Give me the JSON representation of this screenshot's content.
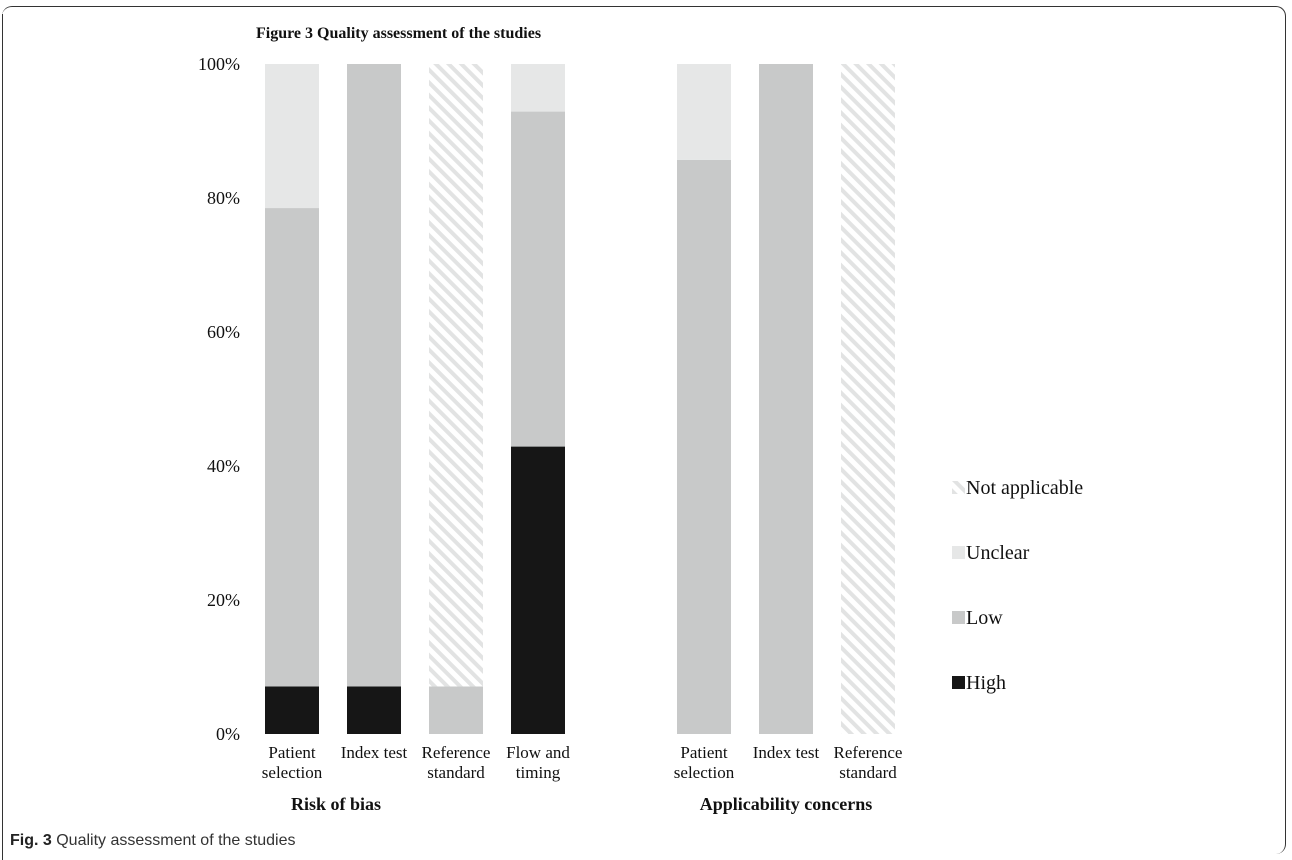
{
  "caption": {
    "label": "Fig. 3",
    "text": "Quality assessment of the studies"
  },
  "colors": {
    "High": "#161616",
    "Low": "#c8c9c9",
    "Unclear": "#e6e7e7",
    "Not applicable": "hatch"
  },
  "chart_data": {
    "type": "bar",
    "stacked": true,
    "title": "Figure 3 Quality assessment of the studies",
    "ylim": [
      0,
      100
    ],
    "yticks": [
      "0%",
      "20%",
      "40%",
      "60%",
      "80%",
      "100%"
    ],
    "grid": false,
    "legend_position": "right",
    "legend": [
      "Not applicable",
      "Unclear",
      "Low",
      "High"
    ],
    "groups": [
      {
        "name": "Risk of bias",
        "categories": [
          [
            "Patient",
            "selection"
          ],
          [
            "Index test"
          ],
          [
            "Reference",
            "standard"
          ],
          [
            "Flow and",
            "timing"
          ]
        ]
      },
      {
        "name": "Applicability concerns",
        "categories": [
          [
            "Patient",
            "selection"
          ],
          [
            "Index test"
          ],
          [
            "Reference",
            "standard"
          ]
        ]
      }
    ],
    "series": [
      {
        "name": "High",
        "values": [
          7.1,
          7.1,
          0,
          42.9,
          0,
          0,
          0
        ]
      },
      {
        "name": "Low",
        "values": [
          71.4,
          92.9,
          7.1,
          50.0,
          85.7,
          100,
          0
        ]
      },
      {
        "name": "Unclear",
        "values": [
          21.5,
          0,
          0,
          7.1,
          14.3,
          0,
          0
        ]
      },
      {
        "name": "Not applicable",
        "values": [
          0,
          0,
          92.9,
          0,
          0,
          0,
          100
        ]
      }
    ]
  }
}
